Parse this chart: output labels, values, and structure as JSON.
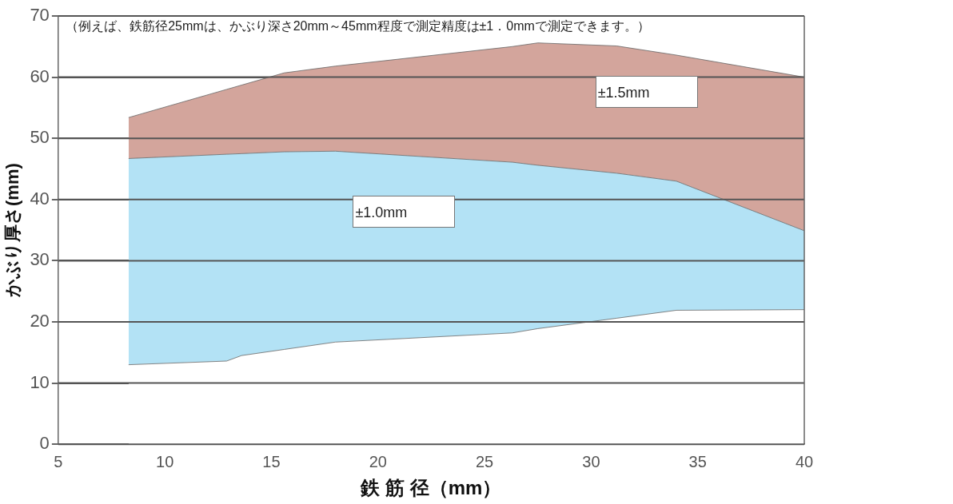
{
  "chart_data": {
    "type": "area",
    "stacked": true,
    "xlabel": "鉄 筋 径（mm）",
    "ylabel": "かぶり厚さ(mm)",
    "x": [
      8.3,
      12.9,
      13.6,
      15.6,
      18.0,
      26.3,
      27.5,
      31.2,
      34.0,
      40
    ],
    "series": [
      {
        "color": "#ffffff",
        "values": [
          13.0,
          13.6,
          14.5,
          15.5,
          16.7,
          18.2,
          18.9,
          20.6,
          21.9,
          22.0
        ]
      },
      {
        "color": "#b3e2f5",
        "values": [
          33.7,
          33.8,
          33.0,
          32.3,
          31.2,
          27.9,
          26.7,
          23.7,
          21.1,
          12.9
        ]
      },
      {
        "color": "#d3a59c",
        "values": [
          6.7,
          10.6,
          11.2,
          12.9,
          13.9,
          18.9,
          20.0,
          20.8,
          20.6,
          25.1
        ]
      }
    ],
    "annotations": [
      "（例えば、鉄筋径25mmは、かぶり深さ20mm～45mm程度で測定精度は±1．0mmで測定できます。）",
      "±1.0mm",
      "±1.5mm"
    ],
    "xlim": [
      5,
      40
    ],
    "xticks": [
      5,
      10,
      15,
      20,
      25,
      30,
      35,
      40
    ],
    "ylim": [
      0,
      70
    ],
    "yticks": [
      0,
      10,
      20,
      30,
      40,
      50,
      60,
      70
    ],
    "grid": "y",
    "legend": false,
    "marker": "none",
    "line_style": "solid"
  }
}
